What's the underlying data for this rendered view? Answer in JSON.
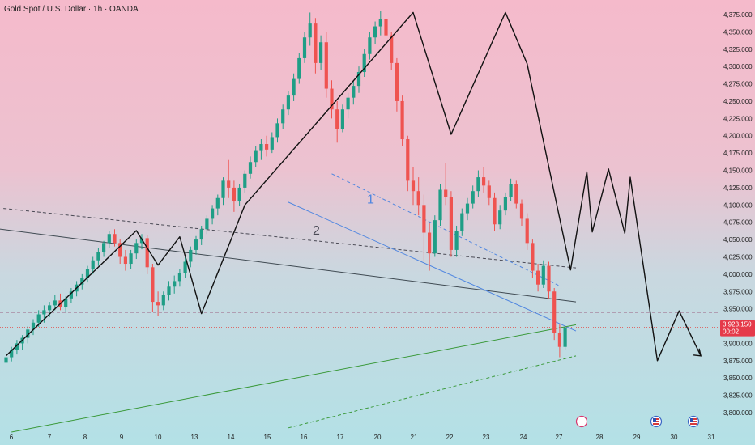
{
  "chart_title": "Gold Spot / U.S. Dollar · 1h · OANDA",
  "chart_data": {
    "type": "line",
    "title": "Gold Spot / U.S. Dollar · 1h · OANDA",
    "xlabel": "",
    "ylabel": "",
    "ylim": [
      3780,
      4385
    ],
    "x_ticks": [
      "6",
      "7",
      "8",
      "9",
      "10",
      "13",
      "14",
      "15",
      "16",
      "17",
      "20",
      "21",
      "22",
      "23",
      "24",
      "27",
      "28",
      "29",
      "30",
      "31"
    ],
    "y_ticks": [
      "3,800.000",
      "3,825.000",
      "3,850.000",
      "3,875.000",
      "3,900.000",
      "3,925.000",
      "3,950.000",
      "3,975.000",
      "4,000.000",
      "4,025.000",
      "4,050.000",
      "4,075.000",
      "4,100.000",
      "4,125.000",
      "4,150.000",
      "4,175.000",
      "4,200.000",
      "4,225.000",
      "4,250.000",
      "4,275.000",
      "4,300.000",
      "4,325.000",
      "4,350.000",
      "4,375.000"
    ],
    "current_price": {
      "label": "3,923.150",
      "value": 3923.15,
      "countdown": "00:02"
    },
    "legend": "none",
    "grid": false,
    "candles": [
      [
        0,
        3872,
        3885,
        3868,
        3880
      ],
      [
        1,
        3880,
        3895,
        3874,
        3890
      ],
      [
        2,
        3890,
        3905,
        3884,
        3900
      ],
      [
        3,
        3900,
        3912,
        3890,
        3908
      ],
      [
        4,
        3908,
        3925,
        3900,
        3920
      ],
      [
        5,
        3920,
        3935,
        3912,
        3930
      ],
      [
        6,
        3930,
        3948,
        3924,
        3942
      ],
      [
        7,
        3942,
        3955,
        3930,
        3948
      ],
      [
        8,
        3948,
        3960,
        3938,
        3955
      ],
      [
        9,
        3955,
        3970,
        3948,
        3962
      ],
      [
        10,
        3962,
        3972,
        3948,
        3952
      ],
      [
        11,
        3952,
        3968,
        3945,
        3965
      ],
      [
        12,
        3965,
        3980,
        3958,
        3975
      ],
      [
        13,
        3975,
        3990,
        3968,
        3985
      ],
      [
        14,
        3985,
        4000,
        3978,
        3995
      ],
      [
        15,
        3995,
        4012,
        3988,
        4008
      ],
      [
        16,
        4008,
        4025,
        4000,
        4020
      ],
      [
        17,
        4020,
        4038,
        4012,
        4032
      ],
      [
        18,
        4032,
        4048,
        4025,
        4045
      ],
      [
        19,
        4045,
        4062,
        4038,
        4058
      ],
      [
        20,
        4058,
        4065,
        4040,
        4045
      ],
      [
        21,
        4045,
        4050,
        4015,
        4025
      ],
      [
        22,
        4025,
        4035,
        4005,
        4015
      ],
      [
        23,
        4015,
        4035,
        4008,
        4030
      ],
      [
        24,
        4030,
        4050,
        4022,
        4045
      ],
      [
        25,
        4045,
        4058,
        4036,
        4052
      ],
      [
        26,
        4052,
        4056,
        4000,
        4010
      ],
      [
        27,
        4010,
        4015,
        3945,
        3960
      ],
      [
        28,
        3960,
        3975,
        3940,
        3955
      ],
      [
        29,
        3955,
        3975,
        3948,
        3970
      ],
      [
        30,
        3970,
        3990,
        3962,
        3982
      ],
      [
        31,
        3982,
        3998,
        3972,
        3990
      ],
      [
        32,
        3990,
        4008,
        3982,
        4002
      ],
      [
        33,
        4002,
        4025,
        3995,
        4018
      ],
      [
        34,
        4018,
        4040,
        4010,
        4035
      ],
      [
        35,
        4035,
        4055,
        4028,
        4050
      ],
      [
        36,
        4050,
        4070,
        4042,
        4065
      ],
      [
        37,
        4065,
        4085,
        4058,
        4080
      ],
      [
        38,
        4080,
        4100,
        4072,
        4095
      ],
      [
        39,
        4095,
        4115,
        4085,
        4110
      ],
      [
        40,
        4110,
        4140,
        4100,
        4135
      ],
      [
        41,
        4135,
        4165,
        4110,
        4125
      ],
      [
        42,
        4125,
        4135,
        4090,
        4105
      ],
      [
        43,
        4105,
        4130,
        4098,
        4125
      ],
      [
        44,
        4125,
        4150,
        4118,
        4145
      ],
      [
        45,
        4145,
        4170,
        4138,
        4162
      ],
      [
        46,
        4162,
        4185,
        4155,
        4178
      ],
      [
        47,
        4178,
        4195,
        4165,
        4188
      ],
      [
        48,
        4188,
        4200,
        4170,
        4180
      ],
      [
        49,
        4180,
        4205,
        4175,
        4198
      ],
      [
        50,
        4198,
        4225,
        4190,
        4218
      ],
      [
        51,
        4218,
        4245,
        4210,
        4238
      ],
      [
        52,
        4238,
        4265,
        4230,
        4258
      ],
      [
        53,
        4258,
        4290,
        4250,
        4282
      ],
      [
        54,
        4282,
        4320,
        4275,
        4312
      ],
      [
        55,
        4312,
        4350,
        4305,
        4342
      ],
      [
        56,
        4342,
        4378,
        4330,
        4362
      ],
      [
        57,
        4362,
        4370,
        4290,
        4305
      ],
      [
        58,
        4305,
        4345,
        4295,
        4335
      ],
      [
        59,
        4335,
        4350,
        4255,
        4268
      ],
      [
        60,
        4268,
        4280,
        4225,
        4238
      ],
      [
        61,
        4238,
        4250,
        4190,
        4210
      ],
      [
        62,
        4210,
        4245,
        4205,
        4238
      ],
      [
        63,
        4238,
        4262,
        4225,
        4255
      ],
      [
        64,
        4255,
        4280,
        4245,
        4272
      ],
      [
        65,
        4272,
        4300,
        4262,
        4292
      ],
      [
        66,
        4292,
        4325,
        4285,
        4318
      ],
      [
        67,
        4318,
        4350,
        4310,
        4342
      ],
      [
        68,
        4342,
        4365,
        4332,
        4358
      ],
      [
        69,
        4358,
        4380,
        4345,
        4368
      ],
      [
        70,
        4368,
        4372,
        4335,
        4345
      ],
      [
        71,
        4345,
        4350,
        4295,
        4305
      ],
      [
        72,
        4305,
        4312,
        4235,
        4250
      ],
      [
        73,
        4250,
        4258,
        4185,
        4195
      ],
      [
        74,
        4195,
        4200,
        4120,
        4135
      ],
      [
        75,
        4135,
        4155,
        4100,
        4120
      ],
      [
        76,
        4120,
        4140,
        4085,
        4100
      ],
      [
        77,
        4100,
        4115,
        4020,
        4060
      ],
      [
        78,
        4060,
        4075,
        4005,
        4030
      ],
      [
        79,
        4030,
        4085,
        4025,
        4078
      ],
      [
        80,
        4078,
        4130,
        4070,
        4122
      ],
      [
        81,
        4122,
        4160,
        4100,
        4112
      ],
      [
        82,
        4112,
        4120,
        4025,
        4035
      ],
      [
        83,
        4035,
        4070,
        4025,
        4062
      ],
      [
        84,
        4062,
        4095,
        4055,
        4088
      ],
      [
        85,
        4088,
        4110,
        4078,
        4102
      ],
      [
        86,
        4102,
        4128,
        4095,
        4120
      ],
      [
        87,
        4120,
        4150,
        4112,
        4140
      ],
      [
        88,
        4140,
        4155,
        4118,
        4128
      ],
      [
        89,
        4128,
        4135,
        4100,
        4110
      ],
      [
        90,
        4110,
        4118,
        4062,
        4072
      ],
      [
        91,
        4072,
        4100,
        4065,
        4092
      ],
      [
        92,
        4092,
        4118,
        4085,
        4112
      ],
      [
        93,
        4112,
        4138,
        4105,
        4130
      ],
      [
        94,
        4130,
        4135,
        4095,
        4102
      ],
      [
        95,
        4102,
        4108,
        4070,
        4080
      ],
      [
        96,
        4080,
        4088,
        4035,
        4045
      ],
      [
        97,
        4045,
        4050,
        3995,
        4005
      ],
      [
        98,
        4005,
        4015,
        3975,
        3985
      ],
      [
        99,
        3985,
        4020,
        3980,
        4012
      ],
      [
        100,
        4012,
        4018,
        3965,
        3975
      ],
      [
        101,
        3975,
        3980,
        3905,
        3915
      ],
      [
        102,
        3915,
        3928,
        3880,
        3895
      ],
      [
        103,
        3895,
        3925,
        3890,
        3923
      ]
    ],
    "horizontal_levels": [
      {
        "value": 3945,
        "style": "dashed",
        "color": "#8e3a66"
      },
      {
        "value": 3923.15,
        "style": "dotted",
        "color": "#e05a5a"
      }
    ],
    "trendlines": [
      {
        "points": [
          [
            -0.5,
            4095
          ],
          [
            105,
            4009
          ]
        ],
        "style": "dashed",
        "color": "#4a4a55"
      },
      {
        "points": [
          [
            -2,
            4066
          ],
          [
            105,
            3960
          ]
        ],
        "style": "solid",
        "color": "#3f4a52"
      },
      {
        "points": [
          [
            52,
            4104
          ],
          [
            105,
            3918
          ]
        ],
        "style": "solid",
        "color": "#4f86e0"
      },
      {
        "points": [
          [
            60,
            4145
          ],
          [
            102,
            3983
          ]
        ],
        "style": "dashed",
        "color": "#4f86e0"
      },
      {
        "points": [
          [
            1,
            3772
          ],
          [
            105,
            3927
          ]
        ],
        "style": "solid",
        "color": "#3c9a3c"
      },
      {
        "points": [
          [
            52,
            3778
          ],
          [
            105,
            3882
          ]
        ],
        "style": "dashed",
        "color": "#3c9a3c"
      }
    ],
    "wave_path": [
      [
        0,
        3882
      ],
      [
        24,
        4063
      ],
      [
        28,
        4013
      ],
      [
        32,
        4054
      ],
      [
        36,
        3943
      ],
      [
        44,
        4100
      ],
      [
        75,
        4378
      ],
      [
        82,
        4202
      ],
      [
        92,
        4378
      ],
      [
        96,
        4304
      ],
      [
        104,
        4006
      ],
      [
        107,
        4148
      ],
      [
        108,
        4061
      ],
      [
        111,
        4152
      ],
      [
        114,
        4059
      ],
      [
        115,
        4140
      ],
      [
        120,
        3875
      ],
      [
        124,
        3947
      ],
      [
        128,
        3882
      ]
    ],
    "wave_arrow_tip": [
      128,
      3882
    ],
    "annotations": [
      {
        "text": "1",
        "x": 66.5,
        "y": 4102,
        "color": "#4f86e0"
      },
      {
        "text": "2",
        "x": 56.5,
        "y": 4057,
        "color": "#4a4a55"
      }
    ],
    "event_icons": [
      {
        "name": "dividend-icon",
        "x_tick": "28",
        "glyph": "⚡",
        "color": "#d9356d"
      },
      {
        "name": "us-flag-icon",
        "x_tick": "30",
        "glyph": "",
        "color": "#3a66c4"
      },
      {
        "name": "us-flag-icon",
        "x_tick": "31",
        "glyph": "",
        "color": "#3a66c4"
      }
    ]
  }
}
